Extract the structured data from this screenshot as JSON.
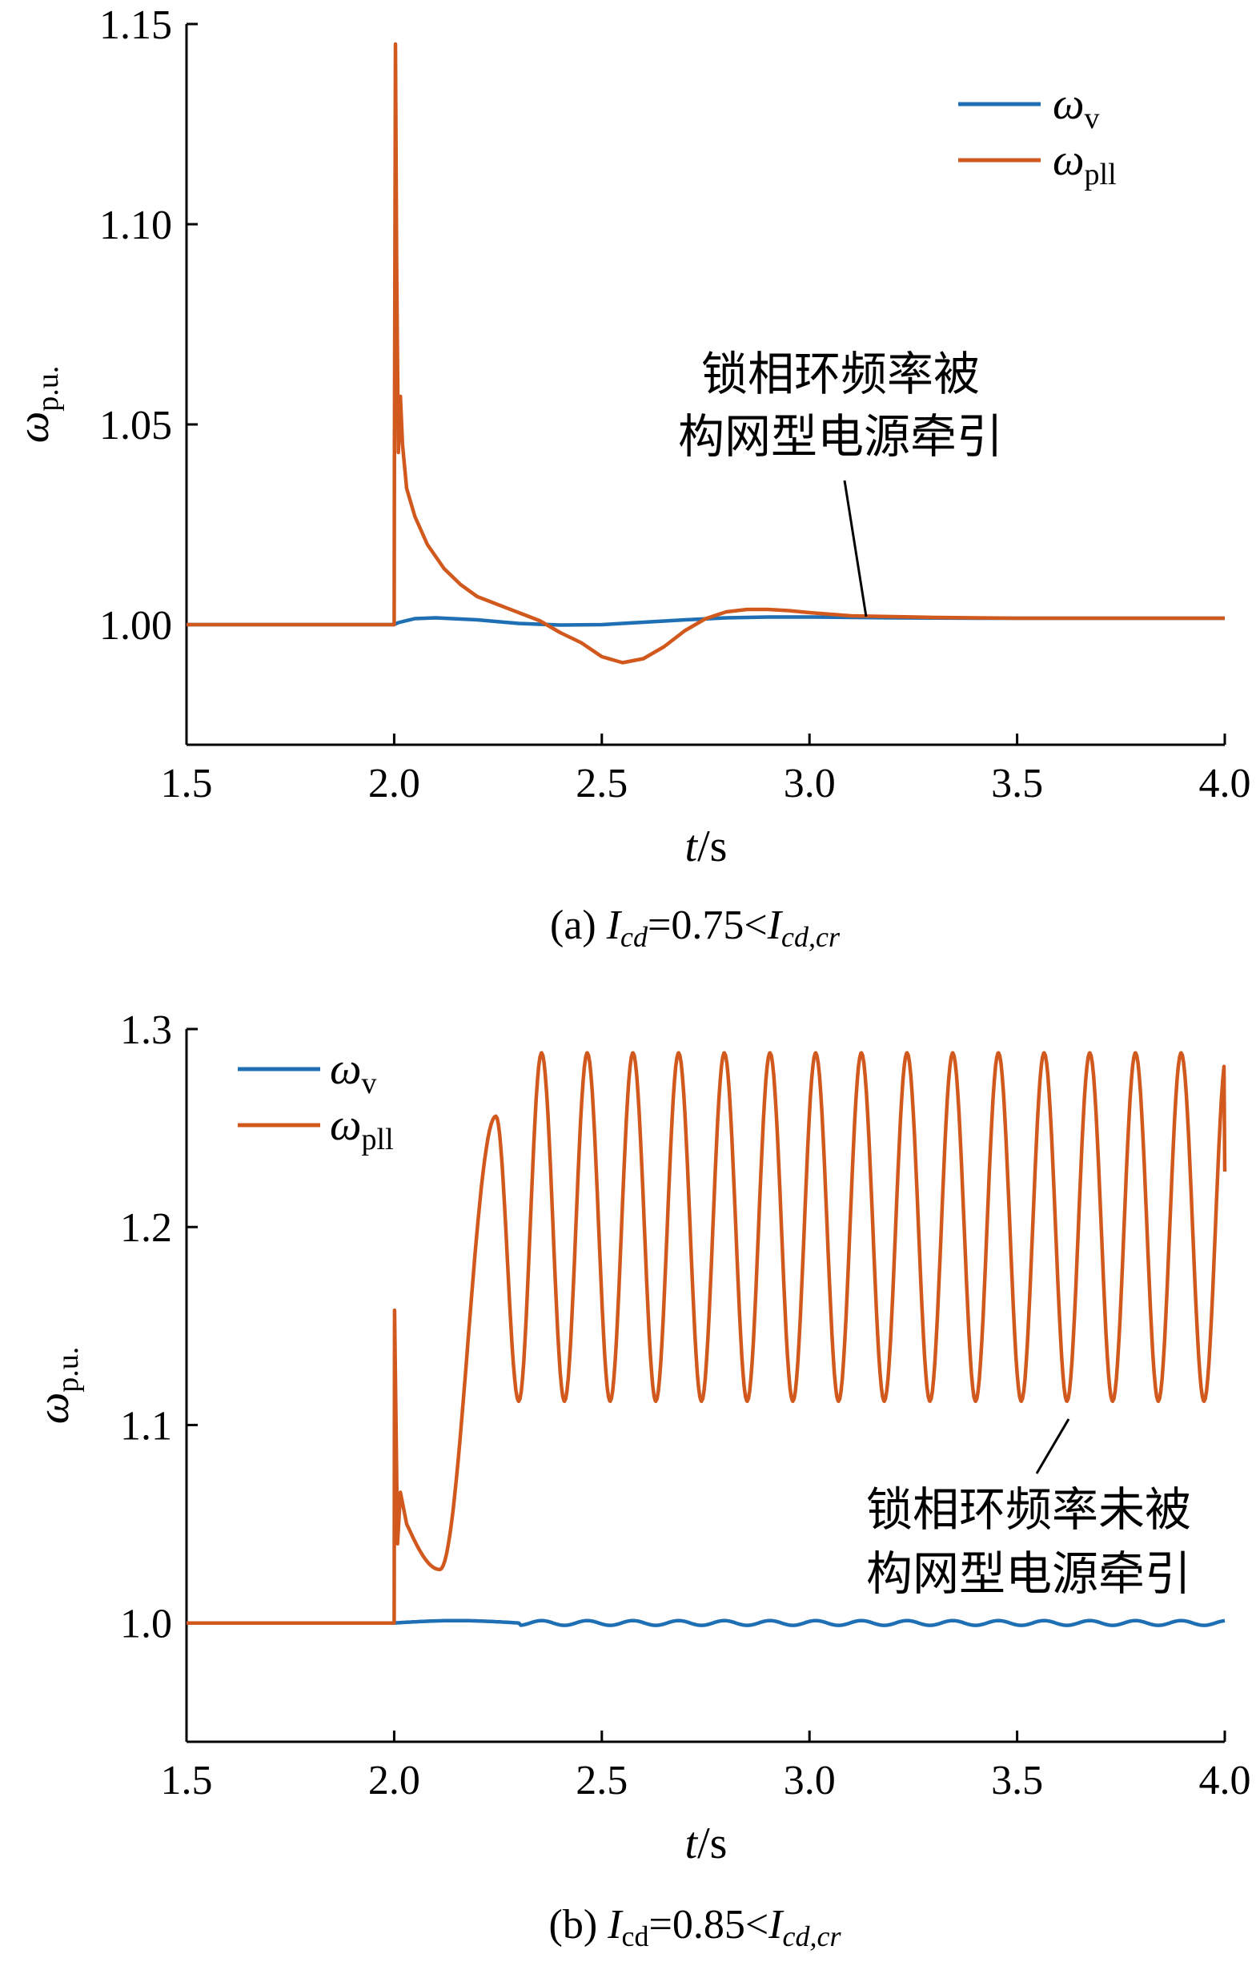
{
  "chart_data": [
    {
      "type": "line",
      "panel": "a",
      "caption": {
        "prefix": "(a) ",
        "I": "I",
        "sub": "cd",
        "relation": "=0.75<",
        "I2": "I",
        "sub2": "cd,cr"
      },
      "xlabel": {
        "var": "t",
        "unit": "/s"
      },
      "ylabel": {
        "var": "ω",
        "sub": "p.u."
      },
      "xlim": [
        1.5,
        4.0
      ],
      "ylim": [
        0.97,
        1.15
      ],
      "xticks": [
        "1.5",
        "2.0",
        "2.5",
        "3.0",
        "3.5",
        "4.0"
      ],
      "xtick_values": [
        1.5,
        2.0,
        2.5,
        3.0,
        3.5,
        4.0
      ],
      "yticks": [
        "1.00",
        "1.05",
        "1.10",
        "1.15"
      ],
      "ytick_values": [
        1.0,
        1.05,
        1.1,
        1.15
      ],
      "grid": false,
      "legend_position": "top-right",
      "series": [
        {
          "name": "ω",
          "name_sub": "v",
          "color": "#1f6fb4",
          "x": [
            1.5,
            2.0,
            2.01,
            2.05,
            2.1,
            2.2,
            2.3,
            2.4,
            2.5,
            2.6,
            2.7,
            2.8,
            2.9,
            3.0,
            3.2,
            3.4,
            3.6,
            4.0
          ],
          "y": [
            1.0,
            1.0,
            1.0005,
            1.0015,
            1.0017,
            1.0012,
            1.0003,
            0.9999,
            1.0,
            1.0006,
            1.0012,
            1.0017,
            1.0019,
            1.0019,
            1.0017,
            1.0016,
            1.0016,
            1.0016
          ]
        },
        {
          "name": "ω",
          "name_sub": "pll",
          "color": "#d2591e",
          "x": [
            1.5,
            2.0,
            2.0005,
            2.003,
            2.006,
            2.01,
            2.015,
            2.02,
            2.03,
            2.05,
            2.08,
            2.12,
            2.16,
            2.2,
            2.25,
            2.3,
            2.35,
            2.4,
            2.45,
            2.5,
            2.55,
            2.6,
            2.65,
            2.7,
            2.75,
            2.8,
            2.85,
            2.9,
            2.95,
            3.0,
            3.05,
            3.1,
            3.2,
            3.3,
            3.4,
            3.5,
            4.0
          ],
          "y": [
            1.0,
            1.0,
            1.04,
            1.145,
            1.09,
            1.043,
            1.057,
            1.045,
            1.034,
            1.027,
            1.02,
            1.014,
            1.01,
            1.007,
            1.005,
            1.003,
            1.001,
            0.998,
            0.9955,
            0.992,
            0.9905,
            0.9915,
            0.9945,
            0.9985,
            1.0015,
            1.0032,
            1.0038,
            1.0038,
            1.0035,
            1.003,
            1.0026,
            1.0022,
            1.002,
            1.0018,
            1.0017,
            1.0016,
            1.0016
          ]
        }
      ],
      "annotation": {
        "lines": [
          "锁相环频率被",
          "构网型电源牵引"
        ],
        "arrow_to": {
          "x": 3.13,
          "y": 1.002
        }
      }
    },
    {
      "type": "line",
      "panel": "b",
      "caption": {
        "prefix": "(b) ",
        "I": "I",
        "sub": "cd",
        "relation": "=0.85<",
        "I2": "I",
        "sub2": "cd,cr"
      },
      "xlabel": {
        "var": "t",
        "unit": "/s"
      },
      "ylabel": {
        "var": "ω",
        "sub": "p.u."
      },
      "xlim": [
        1.5,
        4.0
      ],
      "ylim": [
        0.94,
        1.3
      ],
      "xticks": [
        "1.5",
        "2.0",
        "2.5",
        "3.0",
        "3.5",
        "4.0"
      ],
      "xtick_values": [
        1.5,
        2.0,
        2.5,
        3.0,
        3.5,
        4.0
      ],
      "yticks": [
        "1.0",
        "1.1",
        "1.2",
        "1.3"
      ],
      "ytick_values": [
        1.0,
        1.1,
        1.2,
        1.3
      ],
      "grid": false,
      "legend_position": "top-left",
      "series": [
        {
          "name": "ω",
          "name_sub": "v",
          "color": "#1f6fb4",
          "steady_value": 1.0,
          "step_time": 2.0,
          "bump": {
            "t0": 2.0,
            "t1": 2.3,
            "peak": 1.0012
          },
          "osc_amplitude": 0.0012,
          "osc_period": 0.11,
          "end_time": 4.0
        },
        {
          "name": "ω",
          "name_sub": "pll",
          "color": "#d2591e",
          "pre_value": 1.0,
          "spike": {
            "t": 2.0,
            "peak": 1.158,
            "second_peak": 1.066
          },
          "dip_min": {
            "t": 2.11,
            "y": 1.027
          },
          "first_peak": {
            "t": 2.245,
            "y": 1.256
          },
          "peak_times": [
            2.355,
            2.465,
            2.575,
            2.685,
            2.795,
            2.905,
            3.015,
            3.125,
            3.235,
            3.345,
            3.455,
            3.565,
            3.675,
            3.785,
            3.895
          ],
          "peak_value": 1.288,
          "trough_value": 1.112,
          "end_point": {
            "t": 4.0,
            "y": 1.228
          }
        }
      ],
      "annotation": {
        "lines": [
          "锁相环频率未被",
          "构网型电源牵引"
        ],
        "arrow_to": {
          "x": 3.64,
          "y": 1.114
        }
      }
    }
  ]
}
